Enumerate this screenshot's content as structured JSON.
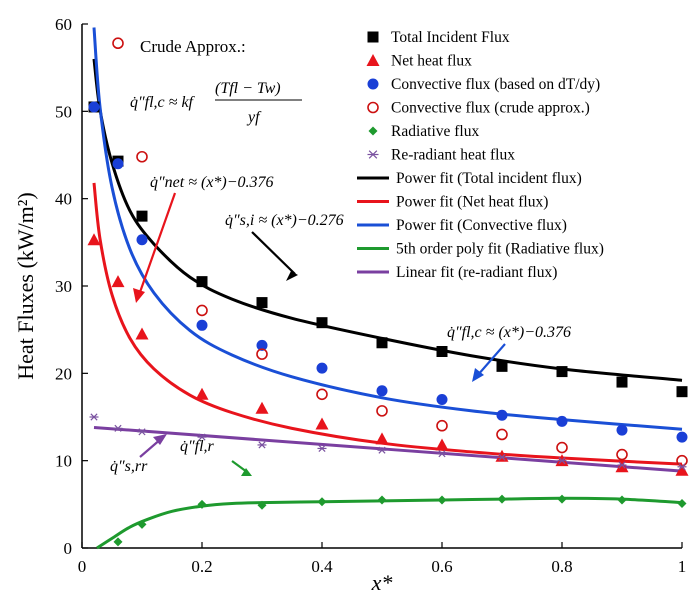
{
  "chart_data": {
    "type": "scatter",
    "xlabel": "x*",
    "ylabel": "Heat Fluxes (kW/m²)",
    "xlim": [
      0,
      1
    ],
    "ylim": [
      0,
      60
    ],
    "xticks": [
      "0",
      "0.2",
      "0.4",
      "0.6",
      "0.8",
      "1"
    ],
    "yticks": [
      "0",
      "10",
      "20",
      "30",
      "40",
      "50",
      "60"
    ],
    "grid": false,
    "legend_position": "top-right",
    "series": [
      {
        "name": "Total Incident Flux",
        "kind": "points",
        "marker": "square",
        "color": "#000000",
        "x": [
          0.02,
          0.06,
          0.1,
          0.2,
          0.3,
          0.4,
          0.5,
          0.6,
          0.7,
          0.8,
          0.9,
          1.0
        ],
        "y": [
          50.5,
          44.3,
          38.0,
          30.5,
          28.1,
          25.8,
          23.5,
          22.5,
          20.8,
          20.2,
          19.0,
          17.9
        ]
      },
      {
        "name": "Net heat flux",
        "kind": "points",
        "marker": "triangle",
        "color": "#e8141c",
        "x": [
          0.02,
          0.06,
          0.1,
          0.2,
          0.3,
          0.4,
          0.5,
          0.6,
          0.7,
          0.8,
          0.9,
          1.0
        ],
        "y": [
          35.3,
          30.5,
          24.5,
          17.6,
          16.0,
          14.2,
          12.5,
          11.8,
          10.5,
          10.0,
          9.3,
          8.9
        ]
      },
      {
        "name": "Convective flux (based on dT/dy)",
        "kind": "points",
        "marker": "circle",
        "color": "#1a3fd6",
        "x": [
          0.02,
          0.06,
          0.1,
          0.2,
          0.3,
          0.4,
          0.5,
          0.6,
          0.7,
          0.8,
          0.9,
          1.0
        ],
        "y": [
          50.5,
          44.0,
          35.3,
          25.5,
          23.2,
          20.6,
          18.0,
          17.0,
          15.2,
          14.5,
          13.5,
          12.7
        ]
      },
      {
        "name": "Convective flux (crude approx.)",
        "kind": "points",
        "marker": "open-circle",
        "color": "#cc1111",
        "x": [
          0.06,
          0.1,
          0.2,
          0.3,
          0.4,
          0.5,
          0.6,
          0.7,
          0.8,
          0.9,
          1.0
        ],
        "y": [
          57.8,
          44.8,
          27.2,
          22.2,
          17.6,
          15.7,
          14.0,
          13.0,
          11.5,
          10.7,
          10.0
        ]
      },
      {
        "name": "Radiative flux",
        "kind": "points",
        "marker": "diamond",
        "color": "#1e9a2e",
        "x": [
          0.06,
          0.1,
          0.2,
          0.3,
          0.4,
          0.5,
          0.6,
          0.7,
          0.8,
          0.9,
          1.0
        ],
        "y": [
          0.7,
          2.7,
          5.0,
          4.9,
          5.3,
          5.5,
          5.5,
          5.6,
          5.6,
          5.5,
          5.1
        ]
      },
      {
        "name": "Re-radiant heat flux",
        "kind": "points",
        "marker": "asterisk",
        "color": "#7a52a0",
        "x": [
          0.02,
          0.06,
          0.1,
          0.2,
          0.3,
          0.4,
          0.5,
          0.6,
          0.7,
          0.8,
          0.9,
          1.0
        ],
        "y": [
          15.0,
          13.7,
          13.3,
          12.7,
          11.8,
          11.4,
          11.2,
          10.8,
          10.4,
          10.0,
          9.5,
          9.3
        ]
      },
      {
        "name": "Power fit (Total incident flux)",
        "kind": "line",
        "color": "#000000",
        "x": [
          0.02,
          0.03,
          0.05,
          0.08,
          0.12,
          0.18,
          0.25,
          0.35,
          0.5,
          0.65,
          0.8,
          1.0
        ],
        "y": [
          56.0,
          50.2,
          44.1,
          38.6,
          34.8,
          31.0,
          28.5,
          26.3,
          24.0,
          22.0,
          20.5,
          19.2
        ]
      },
      {
        "name": "Power fit (Net heat flux)",
        "kind": "line",
        "color": "#e8141c",
        "x": [
          0.02,
          0.03,
          0.05,
          0.08,
          0.12,
          0.18,
          0.25,
          0.35,
          0.5,
          0.65,
          0.8,
          1.0
        ],
        "y": [
          41.8,
          35.4,
          29.0,
          24.0,
          20.5,
          17.5,
          15.5,
          13.7,
          12.0,
          11.0,
          10.3,
          9.6
        ]
      },
      {
        "name": "Power fit (Convective flux)",
        "kind": "line",
        "color": "#1a4fd6",
        "x": [
          0.02,
          0.03,
          0.05,
          0.08,
          0.12,
          0.18,
          0.25,
          0.35,
          0.5,
          0.65,
          0.8,
          1.0
        ],
        "y": [
          59.6,
          50.5,
          41.3,
          34.2,
          29.2,
          24.9,
          22.1,
          19.6,
          17.2,
          15.7,
          14.7,
          13.6
        ]
      },
      {
        "name": "5th order poly fit (Radiative flux)",
        "kind": "line",
        "color": "#1e9a2e",
        "x": [
          0.025,
          0.05,
          0.08,
          0.11,
          0.15,
          0.2,
          0.25,
          0.3,
          0.4,
          0.5,
          0.6,
          0.7,
          0.8,
          0.9,
          1.0
        ],
        "y": [
          0.0,
          1.1,
          2.4,
          3.3,
          4.2,
          4.8,
          5.1,
          5.2,
          5.3,
          5.4,
          5.5,
          5.6,
          5.7,
          5.6,
          5.2
        ]
      },
      {
        "name": "Linear fit (re-radiant flux)",
        "kind": "line",
        "color": "#7a3fa0",
        "x": [
          0.02,
          1.0
        ],
        "y": [
          13.8,
          8.8
        ]
      }
    ]
  },
  "annotations": {
    "crude_approx_label": "Crude Approx.:",
    "crude_formula_lhs": "q̇″fl,c ≈ kf",
    "crude_formula_num": "(Tfl − Tw)",
    "crude_formula_den": "yf",
    "net_fit": "q̇″net ≈ (x*)−0.376",
    "surface_fit": "q̇″s,i ≈ (x*)−0.276",
    "conv_fit": "q̇″fl,c ≈ (x*)−0.376",
    "reradiant_symbol": "q̇″s,rr",
    "radiative_symbol": "q̇″fl,r"
  }
}
